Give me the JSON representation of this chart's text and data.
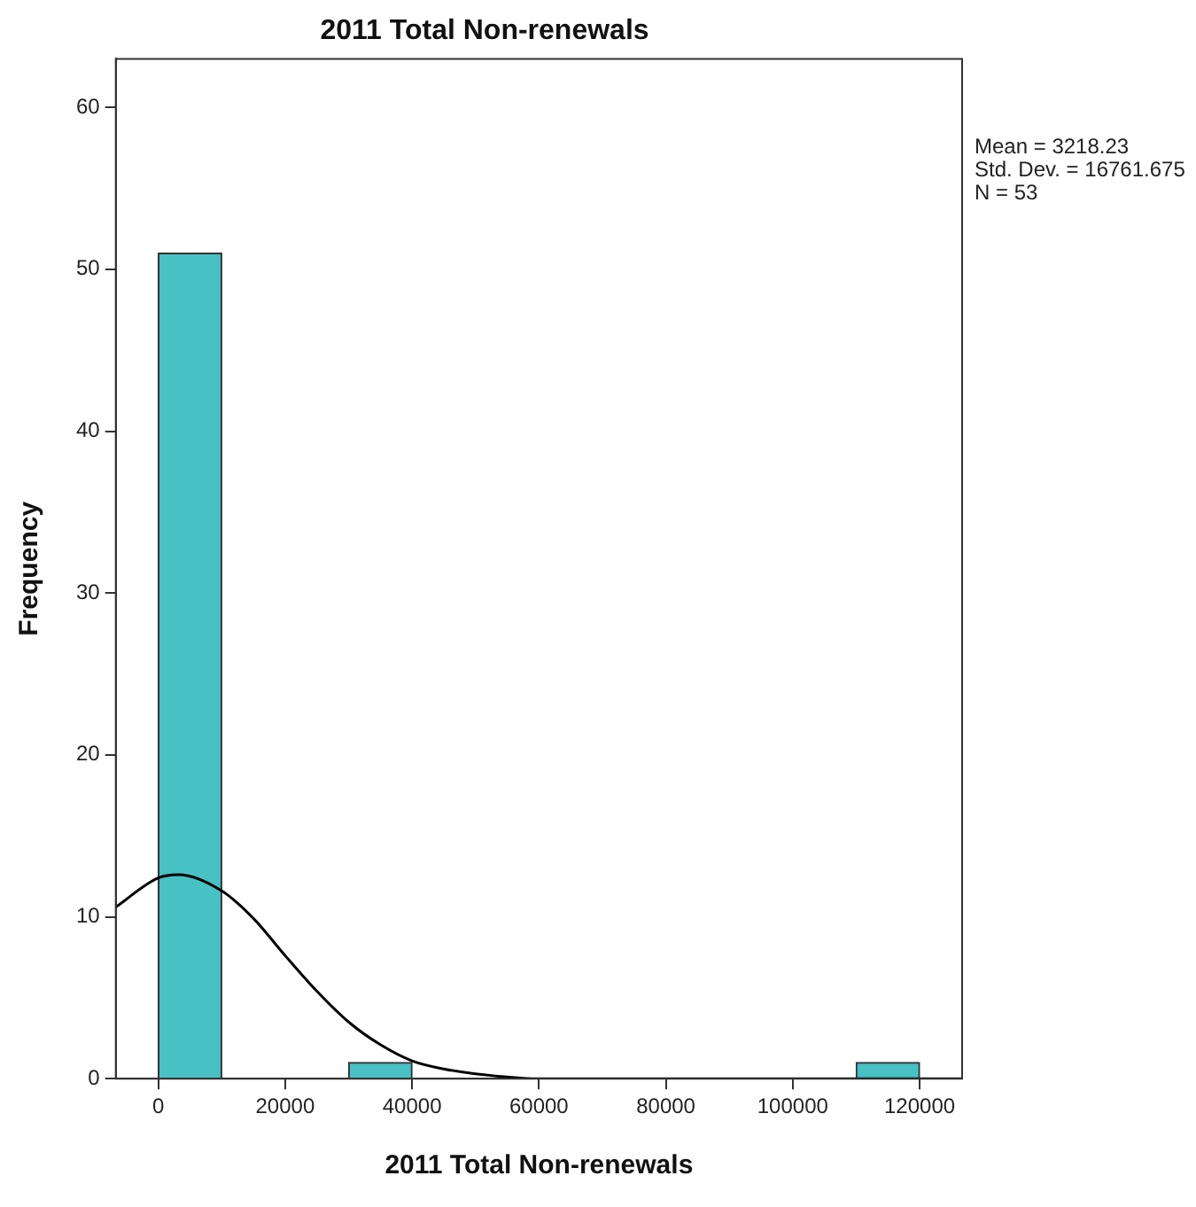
{
  "chart_data": {
    "type": "histogram",
    "title": "2011 Total Non-renewals",
    "xlabel": "2011 Total Non-renewals",
    "ylabel": "Frequency",
    "bins": [
      0,
      10000,
      20000,
      30000,
      40000,
      50000,
      60000,
      70000,
      80000,
      90000,
      100000,
      110000,
      120000
    ],
    "values": [
      51,
      0,
      0,
      1,
      0,
      0,
      0,
      0,
      0,
      0,
      0,
      1
    ],
    "color": "#48c1c4",
    "series": [
      {
        "type": "line",
        "color": "#000000",
        "x": [
          -6700,
          0,
          3218,
          10000,
          15000,
          20000,
          25000,
          30000,
          35000,
          40000,
          45000,
          50000,
          60000,
          70000,
          126700
        ],
        "values": [
          10.6,
          12.4,
          12.6,
          11.6,
          9.9,
          7.6,
          5.4,
          3.5,
          2.1,
          1.1,
          0.6,
          0.3,
          0,
          0,
          0
        ]
      }
    ],
    "xlim": [
      -6700,
      126700
    ],
    "xticks": [
      0,
      20000,
      40000,
      60000,
      80000,
      100000,
      120000
    ],
    "ylim": [
      0,
      63
    ],
    "yticks": [
      0,
      10,
      20,
      30,
      40,
      50,
      60
    ],
    "grid": false,
    "legend": false,
    "annotations": [
      "Mean = 3218.23",
      "Std. Dev. = 16761.675",
      "N = 53"
    ]
  }
}
